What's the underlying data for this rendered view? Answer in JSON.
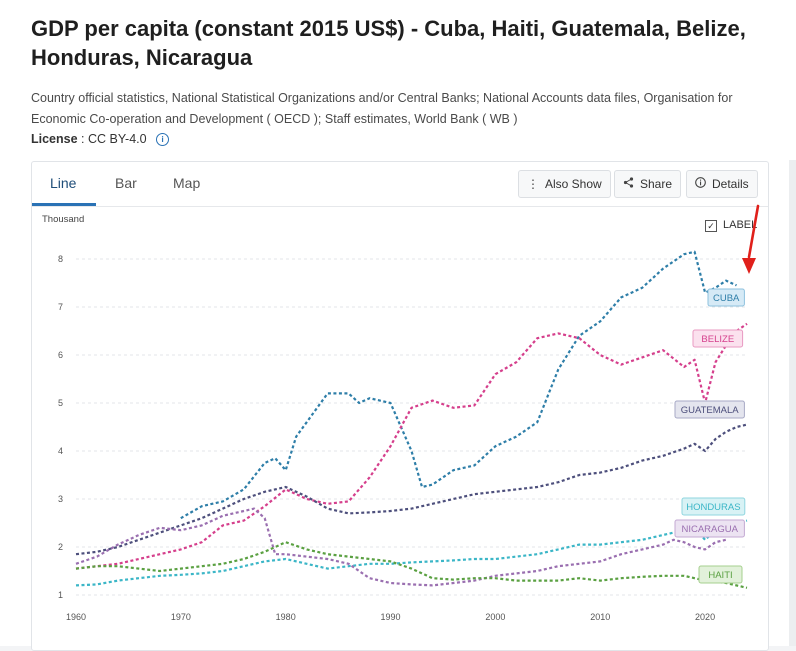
{
  "title": "GDP per capita (constant 2015 US$) - Cuba, Haiti, Guatemala, Belize, Honduras, Nicaragua",
  "source": "Country official statistics, National Statistical Organizations and/or Central Banks; National Accounts data files, Organisation for Economic Co-operation and Development ( OECD ); Staff estimates, World Bank ( WB )",
  "license": {
    "label": "License",
    "value": ": CC BY-4.0"
  },
  "tabs": [
    "Line",
    "Bar",
    "Map"
  ],
  "toolbar": {
    "also_show": "Also Show",
    "share": "Share",
    "details": "Details"
  },
  "label_toggle": {
    "text": "LABEL",
    "checked": true
  },
  "annotation": {
    "arrow_color": "#e0201b"
  },
  "chart_data": {
    "type": "line",
    "ylabel": "Thousand",
    "ylim": [
      1,
      8
    ],
    "xlim": [
      1960,
      2024
    ],
    "yticks": [
      1,
      2,
      3,
      4,
      5,
      6,
      7,
      8
    ],
    "xticks": [
      1960,
      1970,
      1980,
      1990,
      2000,
      2010,
      2020
    ],
    "grid": true,
    "series": [
      {
        "name": "CUBA",
        "color": "#2e7ea8",
        "label_bg": "#d6eaf6",
        "label_border": "#8ec1de",
        "x": [
          1970,
          1972,
          1974,
          1976,
          1978,
          1979,
          1980,
          1981,
          1982,
          1984,
          1986,
          1987,
          1988,
          1990,
          1992,
          1993,
          1994,
          1996,
          1998,
          2000,
          2002,
          2004,
          2006,
          2008,
          2010,
          2012,
          2014,
          2016,
          2017,
          2018,
          2019,
          2020,
          2021,
          2022,
          2023
        ],
        "values": [
          2.6,
          2.85,
          2.95,
          3.2,
          3.75,
          3.85,
          3.6,
          4.3,
          4.6,
          5.2,
          5.2,
          5.0,
          5.1,
          5.0,
          4.0,
          3.25,
          3.3,
          3.6,
          3.7,
          4.1,
          4.3,
          4.6,
          5.7,
          6.4,
          6.7,
          7.2,
          7.4,
          7.8,
          7.95,
          8.1,
          8.15,
          7.3,
          7.4,
          7.55,
          7.45
        ]
      },
      {
        "name": "BELIZE",
        "color": "#d53f8c",
        "label_bg": "#fbe1ee",
        "label_border": "#e89ac2",
        "x": [
          1960,
          1962,
          1964,
          1966,
          1968,
          1970,
          1972,
          1974,
          1976,
          1978,
          1980,
          1982,
          1984,
          1986,
          1988,
          1990,
          1992,
          1994,
          1996,
          1998,
          2000,
          2002,
          2004,
          2006,
          2008,
          2010,
          2012,
          2014,
          2016,
          2018,
          2019,
          2020,
          2021,
          2022,
          2023,
          2024
        ],
        "values": [
          1.55,
          1.6,
          1.65,
          1.75,
          1.85,
          1.95,
          2.1,
          2.45,
          2.55,
          2.85,
          3.2,
          3.0,
          2.9,
          2.95,
          3.45,
          4.1,
          4.9,
          5.05,
          4.9,
          4.95,
          5.6,
          5.85,
          6.35,
          6.45,
          6.35,
          6.0,
          5.8,
          5.95,
          6.1,
          5.75,
          5.9,
          5.0,
          5.85,
          6.2,
          6.5,
          6.65
        ]
      },
      {
        "name": "GUATEMALA",
        "color": "#4d4f7c",
        "label_bg": "#e4e5ee",
        "label_border": "#a7a9c5",
        "x": [
          1960,
          1962,
          1964,
          1966,
          1968,
          1970,
          1972,
          1974,
          1976,
          1978,
          1980,
          1982,
          1984,
          1986,
          1988,
          1990,
          1992,
          1994,
          1996,
          1998,
          2000,
          2002,
          2004,
          2006,
          2008,
          2010,
          2012,
          2014,
          2016,
          2018,
          2019,
          2020,
          2021,
          2022,
          2023,
          2024
        ],
        "values": [
          1.85,
          1.9,
          2.0,
          2.15,
          2.3,
          2.45,
          2.6,
          2.8,
          3.0,
          3.15,
          3.25,
          3.05,
          2.8,
          2.7,
          2.72,
          2.75,
          2.8,
          2.9,
          3.0,
          3.1,
          3.15,
          3.2,
          3.25,
          3.35,
          3.5,
          3.55,
          3.65,
          3.8,
          3.9,
          4.05,
          4.15,
          4.0,
          4.25,
          4.4,
          4.5,
          4.55
        ]
      },
      {
        "name": "HONDURAS",
        "color": "#3bb6c7",
        "label_bg": "#d8f2f5",
        "label_border": "#8fd6df",
        "x": [
          1960,
          1962,
          1964,
          1966,
          1968,
          1970,
          1972,
          1974,
          1976,
          1978,
          1980,
          1982,
          1984,
          1986,
          1988,
          1990,
          1992,
          1994,
          1996,
          1998,
          2000,
          2002,
          2004,
          2006,
          2008,
          2010,
          2012,
          2014,
          2016,
          2018,
          2019,
          2020,
          2021,
          2022,
          2023,
          2024
        ],
        "values": [
          1.2,
          1.22,
          1.3,
          1.35,
          1.4,
          1.42,
          1.45,
          1.5,
          1.6,
          1.7,
          1.75,
          1.65,
          1.55,
          1.6,
          1.65,
          1.65,
          1.68,
          1.7,
          1.72,
          1.75,
          1.75,
          1.8,
          1.85,
          1.95,
          2.05,
          2.05,
          2.1,
          2.15,
          2.25,
          2.35,
          2.4,
          2.15,
          2.35,
          2.45,
          2.5,
          2.55
        ]
      },
      {
        "name": "NICARAGUA",
        "color": "#9a6fb0",
        "label_bg": "#ece3f2",
        "label_border": "#c3a9d3",
        "x": [
          1960,
          1962,
          1964,
          1966,
          1968,
          1970,
          1972,
          1974,
          1976,
          1977,
          1978,
          1979,
          1980,
          1982,
          1984,
          1986,
          1988,
          1990,
          1992,
          1994,
          1996,
          1998,
          2000,
          2002,
          2004,
          2006,
          2008,
          2010,
          2012,
          2014,
          2016,
          2017,
          2018,
          2019,
          2020,
          2021,
          2022
        ],
        "values": [
          1.65,
          1.8,
          2.05,
          2.25,
          2.4,
          2.35,
          2.45,
          2.65,
          2.75,
          2.8,
          2.6,
          1.85,
          1.85,
          1.8,
          1.75,
          1.65,
          1.35,
          1.25,
          1.22,
          1.2,
          1.25,
          1.3,
          1.4,
          1.45,
          1.5,
          1.6,
          1.65,
          1.7,
          1.85,
          1.95,
          2.05,
          2.15,
          2.1,
          2.0,
          1.95,
          2.1,
          2.15
        ]
      },
      {
        "name": "HAITI",
        "color": "#5aa041",
        "label_bg": "#e2f1da",
        "label_border": "#a6d08f",
        "x": [
          1960,
          1962,
          1964,
          1966,
          1968,
          1970,
          1972,
          1974,
          1976,
          1978,
          1980,
          1982,
          1984,
          1986,
          1988,
          1990,
          1992,
          1994,
          1996,
          1998,
          2000,
          2002,
          2004,
          2006,
          2008,
          2010,
          2012,
          2014,
          2016,
          2018,
          2020,
          2022,
          2024
        ],
        "values": [
          1.55,
          1.6,
          1.6,
          1.55,
          1.5,
          1.55,
          1.6,
          1.65,
          1.75,
          1.9,
          2.1,
          1.95,
          1.85,
          1.8,
          1.75,
          1.7,
          1.55,
          1.35,
          1.32,
          1.35,
          1.35,
          1.3,
          1.3,
          1.3,
          1.35,
          1.3,
          1.35,
          1.38,
          1.4,
          1.4,
          1.3,
          1.25,
          1.15
        ]
      }
    ]
  }
}
